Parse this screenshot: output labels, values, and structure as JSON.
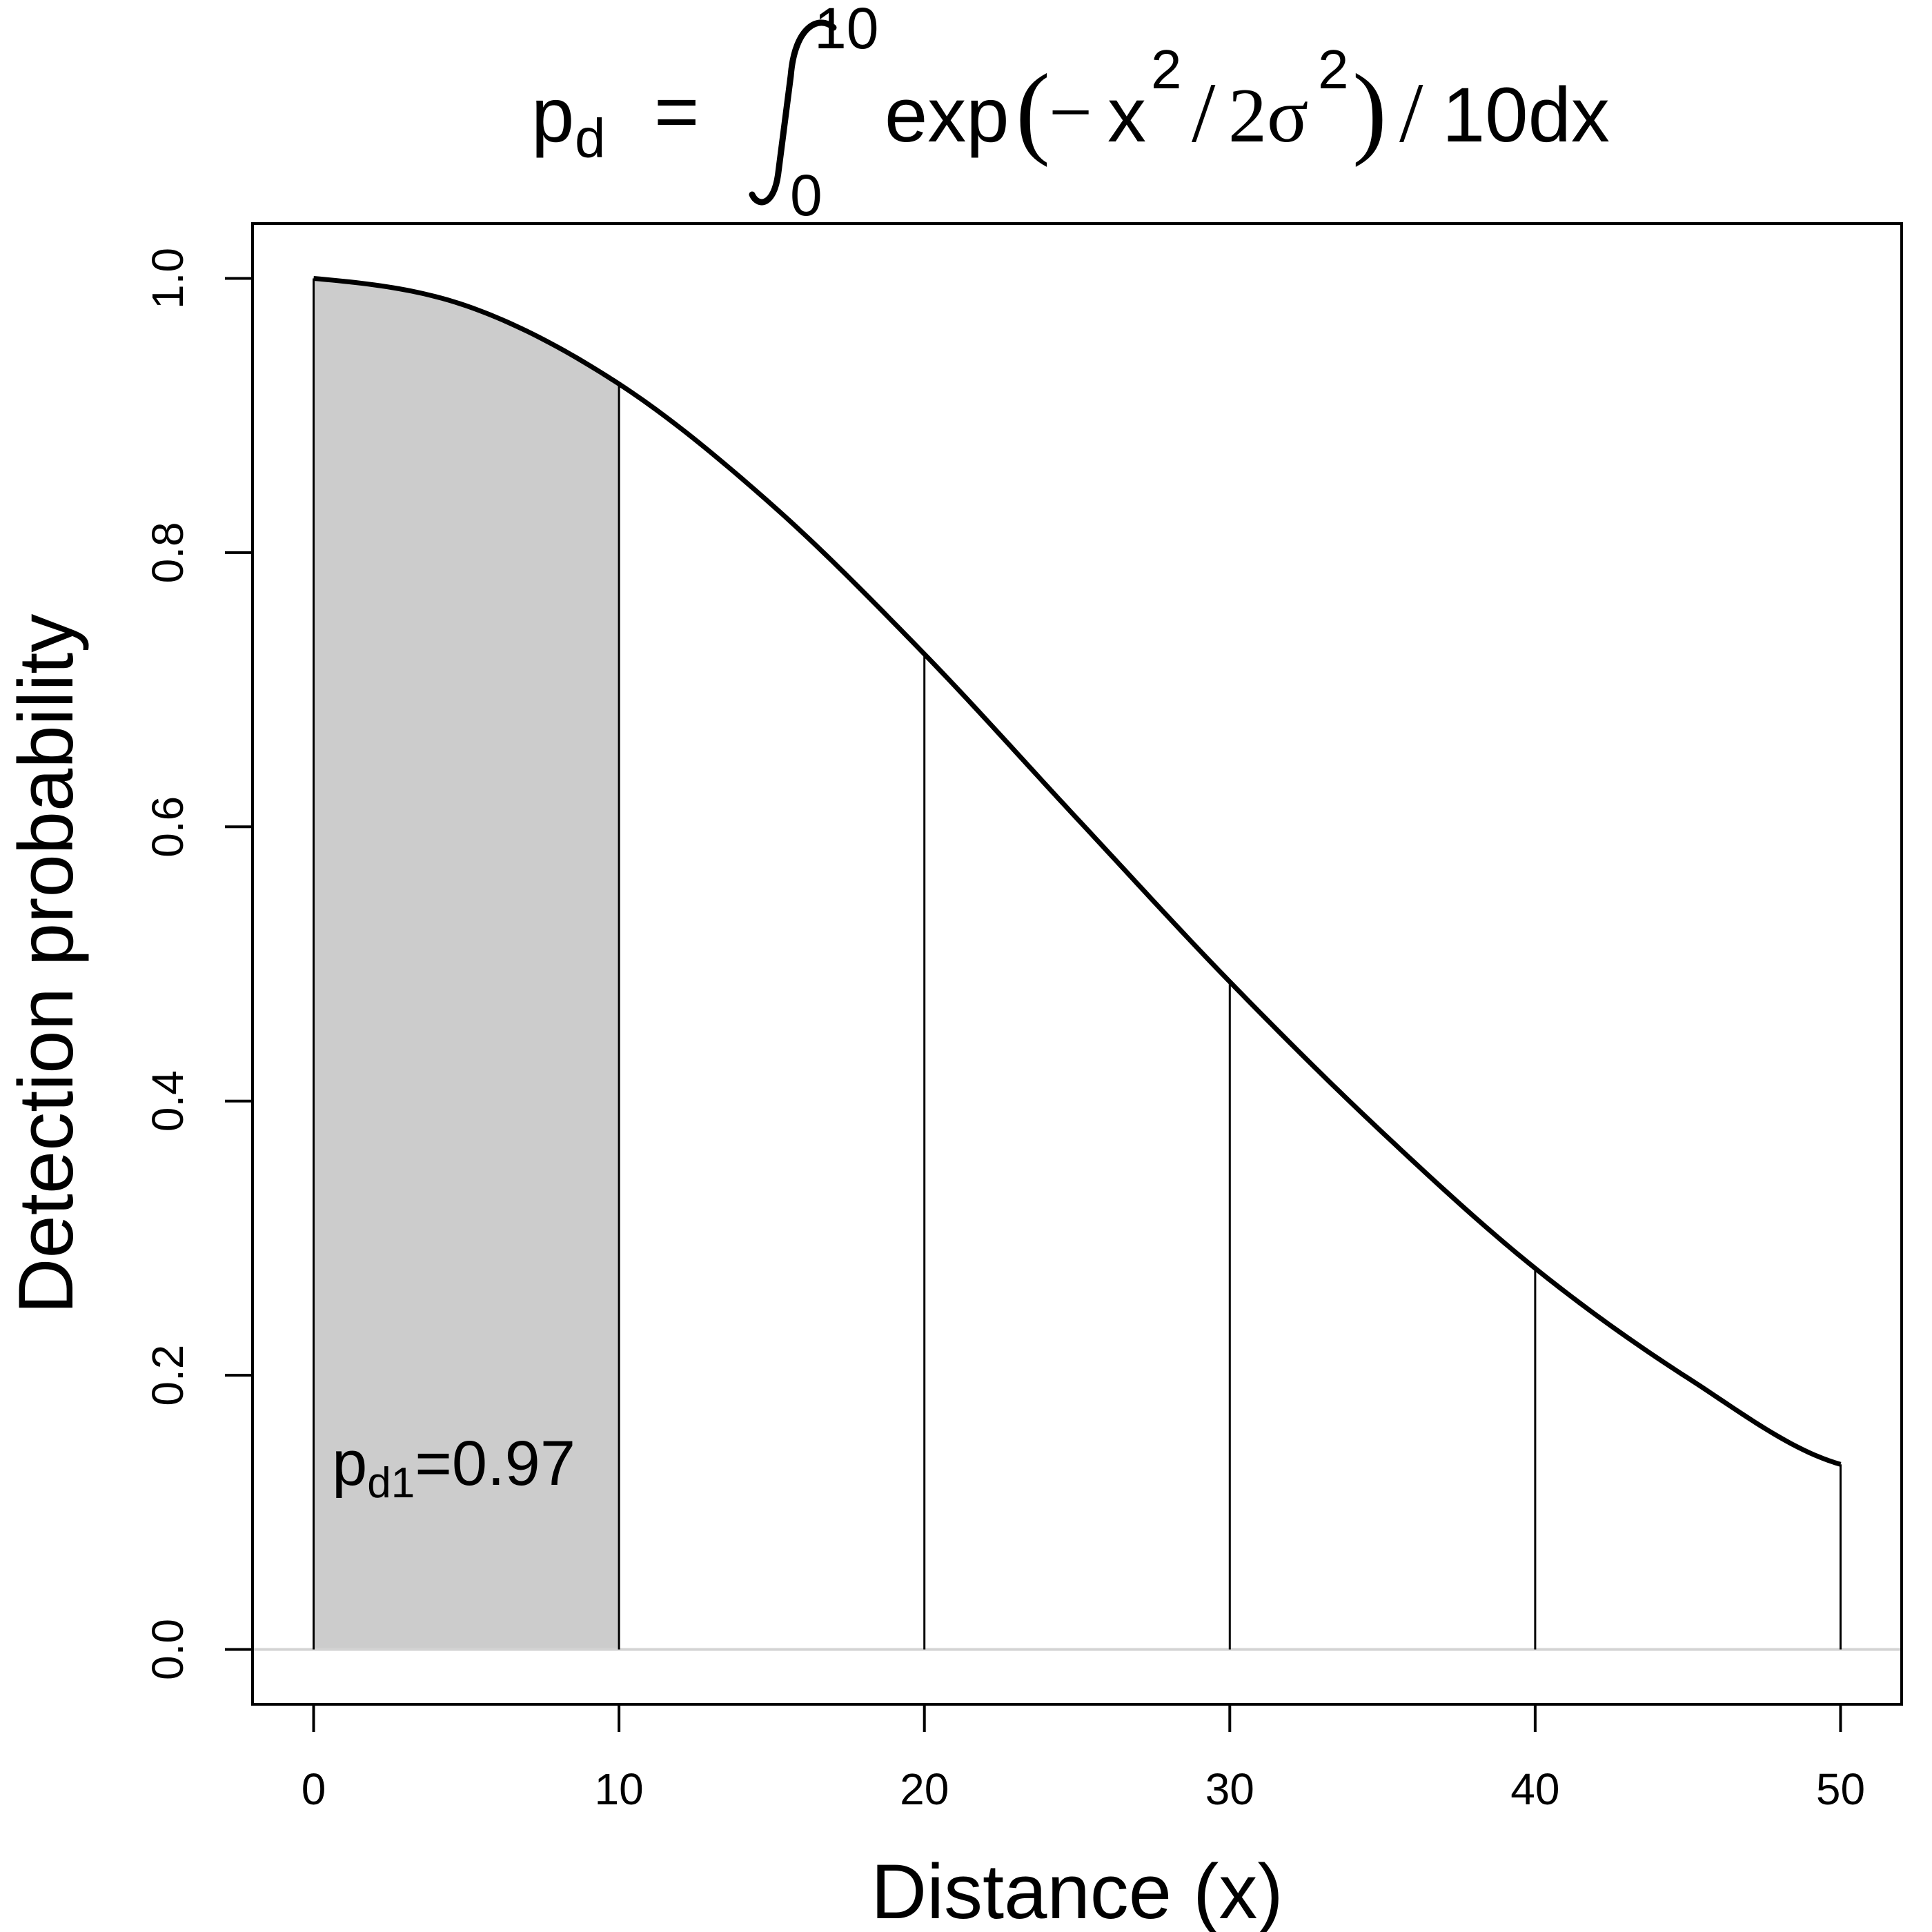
{
  "chart_data": {
    "type": "area",
    "title": {
      "lhs": "p",
      "lhs_sub": "d",
      "eq": "=",
      "int_upper": "10",
      "int_lower": "0",
      "integrand_a": "exp",
      "integrand_b": "x",
      "exp1": "2",
      "integrand_c": "2σ",
      "exp2": "2",
      "integrand_d": "10dx"
    },
    "xlabel": "Distance (x)",
    "ylabel": "Detection probability",
    "xlim": [
      -2,
      52
    ],
    "ylim": [
      -0.04,
      1.04
    ],
    "x_ticks": [
      "0",
      "10",
      "20",
      "30",
      "40",
      "50"
    ],
    "y_ticks": [
      "0.0",
      "0.2",
      "0.4",
      "0.6",
      "0.8",
      "1.0"
    ],
    "curve": {
      "x": [
        0,
        5,
        10,
        15,
        20,
        25,
        30,
        35,
        40,
        45,
        50
      ],
      "y": [
        1.0,
        0.98,
        0.923,
        0.835,
        0.726,
        0.606,
        0.487,
        0.377,
        0.278,
        0.198,
        0.135
      ]
    },
    "interval_boundaries": {
      "x": [
        0,
        10,
        20,
        30,
        40,
        50
      ],
      "y": [
        1.0,
        0.923,
        0.726,
        0.487,
        0.278,
        0.135
      ]
    },
    "shaded_interval": [
      0,
      10
    ],
    "shade_color": "#cccccc",
    "baseline": {
      "y": 0,
      "color": "#d3d3d3"
    },
    "annotation": {
      "base": "p",
      "sub": "d1",
      "value": "=0.97",
      "x": 0.6,
      "y": 0.12
    }
  }
}
